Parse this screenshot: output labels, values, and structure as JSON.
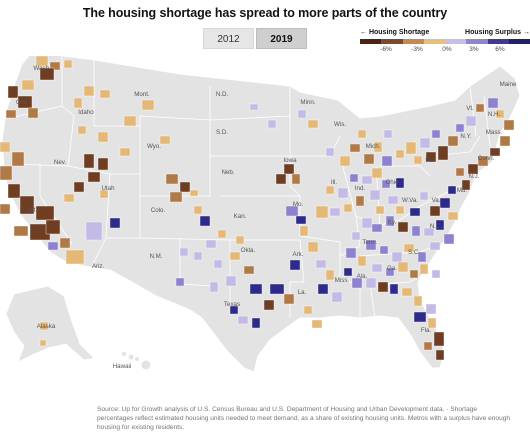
{
  "title": "The housing shortage has spread to more parts of the country",
  "toggle": {
    "options": [
      "2012",
      "2019"
    ],
    "selected": "2019"
  },
  "legend": {
    "shortage_label": "← Housing Shortage",
    "surplus_label": "Housing Surplus →",
    "ticks": [
      "-6%",
      "-3%",
      "0%",
      "3%",
      "6%"
    ],
    "colors": [
      "#4a2410",
      "#7b4a2c",
      "#c88a4c",
      "#e8c07e",
      "#c7bde8",
      "#8f84cf",
      "#3f3896",
      "#21206b"
    ]
  },
  "colors": {
    "land": "#e3e3e3",
    "border": "#ffffff",
    "shortage_dark": "#6e3d22",
    "shortage_mid": "#b07a47",
    "shortage_light": "#e4b876",
    "surplus_light": "#c3bbe6",
    "surplus_mid": "#8c82cf",
    "surplus_dark": "#2d2a8a"
  },
  "state_labels": [
    "Wash.",
    "Ore.",
    "Idaho",
    "Mont.",
    "Wyo.",
    "Nev.",
    "Utah",
    "Calif.",
    "Ariz.",
    "N.M.",
    "Colo.",
    "N.D.",
    "S.D.",
    "Neb.",
    "Kan.",
    "Okla.",
    "Texas",
    "Minn.",
    "Iowa",
    "Mo.",
    "Ark.",
    "La.",
    "Wis.",
    "Ill.",
    "Mich.",
    "Ind.",
    "Ohio",
    "Ky.",
    "Tenn.",
    "Miss.",
    "Ala.",
    "Ga.",
    "Fla.",
    "S.C.",
    "N.C.",
    "Va.",
    "W.Va.",
    "Pa.",
    "N.Y.",
    "Vt.",
    "N.H.",
    "Maine",
    "Mass.",
    "Conn.",
    "N.J.",
    "Md.",
    "Alaska",
    "Hawaii"
  ],
  "source": "Source: Up for Growth analysis of U.S. Census Bureau and U.S. Department of Housing and Urban Development data.  ·  Shortage percentages reflect estimated housing units needed to meet demand, as a share of existing housing units. Metros with a surplus have enough housing for existing residents."
}
